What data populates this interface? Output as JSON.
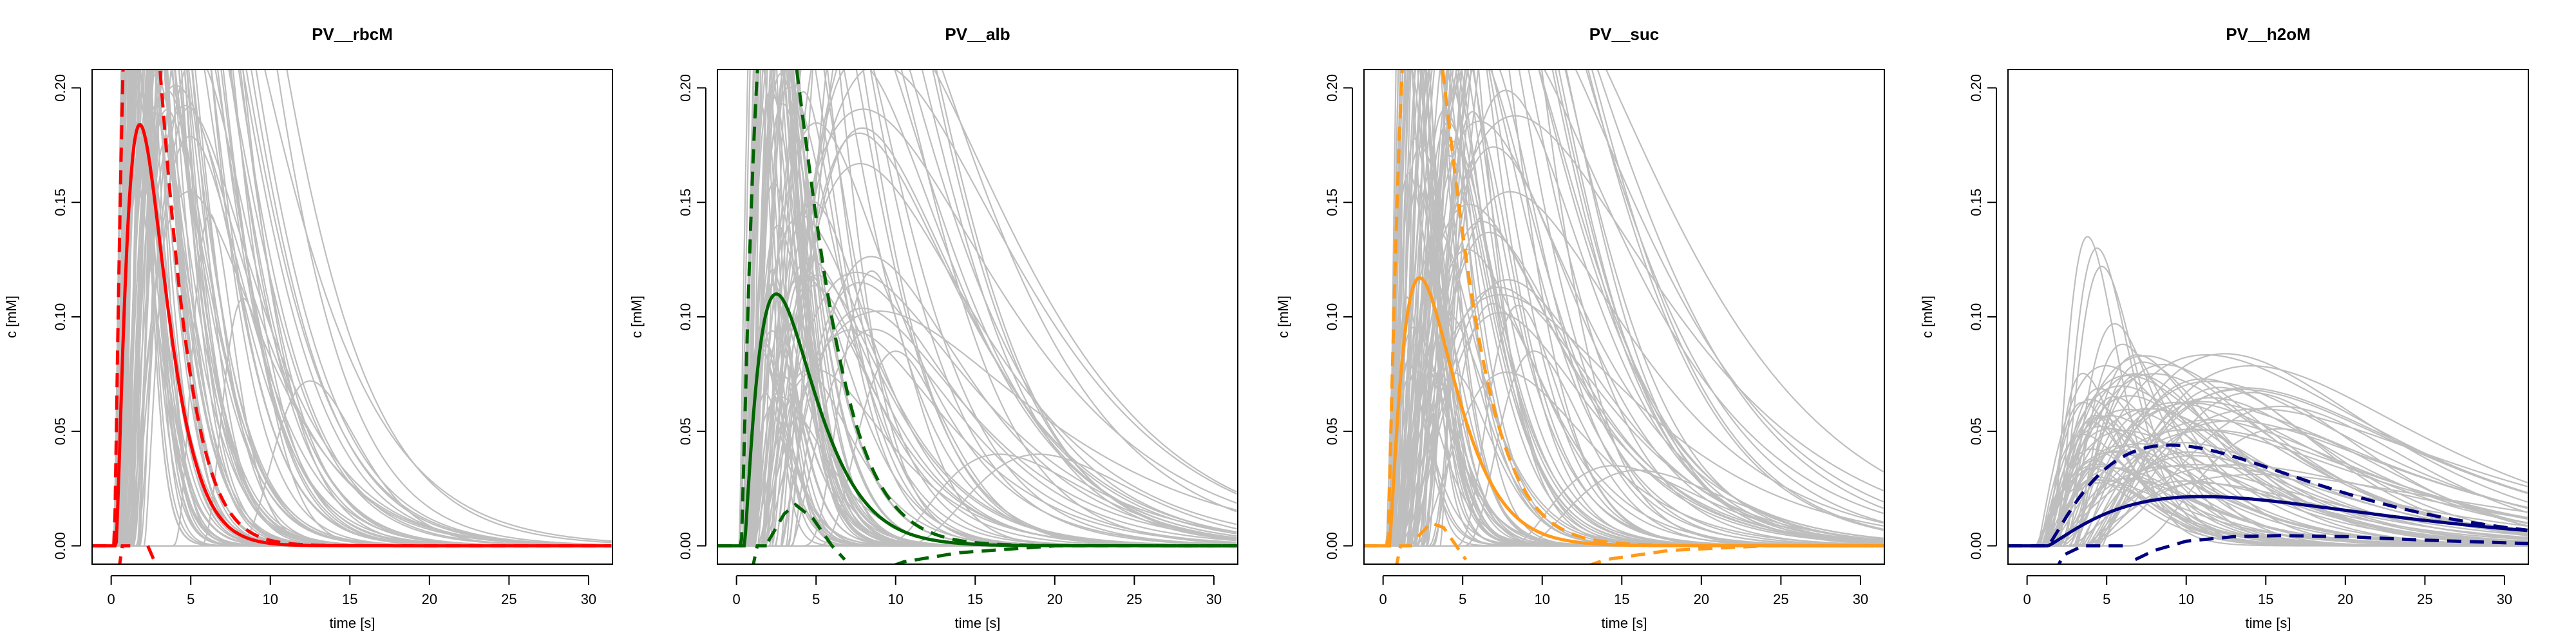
{
  "chart_data": [
    {
      "type": "line",
      "title": "PV__rbcM",
      "xlabel": "time [s]",
      "ylabel": "c [mM]",
      "xlim": [
        -1.2,
        31.5
      ],
      "ylim": [
        -0.008,
        0.208
      ],
      "xticks": [
        "0",
        "5",
        "10",
        "15",
        "20",
        "25",
        "30"
      ],
      "yticks": [
        "0.00",
        "0.05",
        "0.10",
        "0.15",
        "0.20"
      ],
      "color": "#ff0000",
      "mean": {
        "t0": 0.3,
        "peak_t": 1.8,
        "peak_c": 0.184,
        "tau": 2.1
      },
      "upper": {
        "t0": 0.2,
        "peak_t": 1.6,
        "peak_c": 0.31,
        "tau": 3.2
      },
      "lower_segments": [
        [
          [
            0.0,
            -0.05
          ],
          [
            0.45,
            -0.012
          ],
          [
            0.7,
            0.0
          ],
          [
            1.2,
            0.0
          ]
        ],
        [
          [
            2.3,
            0.0
          ],
          [
            2.8,
            -0.008
          ],
          [
            3.3,
            -0.02
          ]
        ]
      ],
      "samples": {
        "count": 80,
        "peak_t_range": [
          1.5,
          5.5
        ],
        "peak_c_range": [
          0.15,
          0.45
        ],
        "extra": [
          {
            "t0": 5.5,
            "peak_t": 8.3,
            "peak_c": 0.108,
            "tau": 1.6
          },
          {
            "t0": 7.6,
            "peak_t": 12.5,
            "peak_c": 0.072,
            "tau": 2.8
          },
          {
            "t0": 3.8,
            "peak_t": 6.2,
            "peak_c": 0.145,
            "tau": 1.4
          }
        ]
      }
    },
    {
      "type": "line",
      "title": "PV__alb",
      "xlabel": "time [s]",
      "ylabel": "c [mM]",
      "xlim": [
        -1.2,
        31.5
      ],
      "ylim": [
        -0.008,
        0.208
      ],
      "xticks": [
        "0",
        "5",
        "10",
        "15",
        "20",
        "25",
        "30"
      ],
      "yticks": [
        "0.00",
        "0.05",
        "0.10",
        "0.15",
        "0.20"
      ],
      "color": "#006400",
      "mean": {
        "t0": 0.5,
        "peak_t": 2.5,
        "peak_c": 0.11,
        "tau": 3.6
      },
      "upper": {
        "t0": 0.3,
        "peak_t": 2.3,
        "peak_c": 0.26,
        "tau": 4.3
      },
      "lower_segments": [
        [
          [
            0.5,
            -0.05
          ],
          [
            1.0,
            -0.01
          ],
          [
            1.3,
            0.0
          ],
          [
            1.9,
            0.0
          ]
        ],
        [
          [
            2.0,
            0.002
          ],
          [
            3.0,
            0.014
          ],
          [
            3.7,
            0.018
          ],
          [
            4.8,
            0.012
          ],
          [
            6.0,
            0.0
          ],
          [
            6.8,
            -0.006
          ]
        ],
        [
          [
            8.5,
            -0.012
          ],
          [
            10.5,
            -0.007
          ],
          [
            14,
            -0.003
          ],
          [
            20,
            0.0
          ],
          [
            27,
            0.0
          ],
          [
            31.5,
            0.0
          ]
        ]
      ],
      "samples": {
        "count": 85,
        "peak_t_range": [
          1.5,
          9.0
        ],
        "peak_c_range": [
          0.06,
          0.35
        ],
        "extra": [
          {
            "t0": 9.0,
            "peak_t": 16.5,
            "peak_c": 0.04,
            "tau": 5.5
          },
          {
            "t0": 10.0,
            "peak_t": 19.0,
            "peak_c": 0.04,
            "tau": 5.5
          },
          {
            "t0": 5.0,
            "peak_t": 10.0,
            "peak_c": 0.085,
            "tau": 3.0
          },
          {
            "t0": 4.0,
            "peak_t": 8.5,
            "peak_c": 0.12,
            "tau": 2.2
          }
        ]
      }
    },
    {
      "type": "line",
      "title": "PV__suc",
      "xlabel": "time [s]",
      "ylabel": "c [mM]",
      "xlim": [
        -1.2,
        31.5
      ],
      "ylim": [
        -0.008,
        0.208
      ],
      "xticks": [
        "0",
        "5",
        "10",
        "15",
        "20",
        "25",
        "30"
      ],
      "yticks": [
        "0.00",
        "0.05",
        "0.10",
        "0.15",
        "0.20"
      ],
      "color": "#ff9a1a",
      "mean": {
        "t0": 0.4,
        "peak_t": 2.3,
        "peak_c": 0.117,
        "tau": 3.0
      },
      "upper": {
        "t0": 0.3,
        "peak_t": 2.2,
        "peak_c": 0.27,
        "tau": 3.7
      },
      "lower_segments": [
        [
          [
            0.4,
            -0.05
          ],
          [
            0.8,
            -0.01
          ],
          [
            1.1,
            0.0
          ],
          [
            1.9,
            0.0
          ]
        ],
        [
          [
            2.2,
            0.004
          ],
          [
            3.0,
            0.01
          ],
          [
            3.8,
            0.008
          ],
          [
            4.6,
            0.0
          ],
          [
            5.2,
            -0.006
          ]
        ],
        [
          [
            11.5,
            -0.012
          ],
          [
            14,
            -0.006
          ],
          [
            18,
            -0.002
          ],
          [
            24,
            0.0
          ],
          [
            31.5,
            0.0
          ]
        ]
      ],
      "samples": {
        "count": 85,
        "peak_t_range": [
          1.5,
          8.5
        ],
        "peak_c_range": [
          0.07,
          0.35
        ],
        "extra": [
          {
            "t0": 8.0,
            "peak_t": 14.5,
            "peak_c": 0.035,
            "tau": 6.0
          },
          {
            "t0": 8.5,
            "peak_t": 16.0,
            "peak_c": 0.033,
            "tau": 6.0
          },
          {
            "t0": 5.0,
            "peak_t": 9.5,
            "peak_c": 0.085,
            "tau": 3.0
          },
          {
            "t0": 4.5,
            "peak_t": 8.5,
            "peak_c": 0.105,
            "tau": 2.5
          }
        ]
      }
    },
    {
      "type": "line",
      "title": "PV__h2oM",
      "xlabel": "time [s]",
      "ylabel": "c [mM]",
      "xlim": [
        -1.2,
        31.5
      ],
      "ylim": [
        -0.008,
        0.208
      ],
      "xticks": [
        "0",
        "5",
        "10",
        "15",
        "20",
        "25",
        "30"
      ],
      "yticks": [
        "0.00",
        "0.05",
        "0.10",
        "0.15",
        "0.20"
      ],
      "color": "#000080",
      "mean": {
        "t0": 1.3,
        "peak_t": 11.0,
        "peak_c": 0.0215,
        "tau": 32
      },
      "upper": {
        "t0": 1.3,
        "peak_t": 9.0,
        "peak_c": 0.044,
        "tau": 25
      },
      "lower_segments": [
        [
          [
            1.7,
            -0.012
          ],
          [
            2.3,
            -0.004
          ],
          [
            3.5,
            0.0
          ],
          [
            4.8,
            0.0
          ],
          [
            6.5,
            0.0
          ]
        ],
        [
          [
            6.8,
            -0.006
          ],
          [
            8.0,
            -0.002
          ],
          [
            10.0,
            0.002
          ],
          [
            13.0,
            0.004
          ],
          [
            16.0,
            0.0045
          ],
          [
            20.0,
            0.004
          ],
          [
            25.0,
            0.0025
          ],
          [
            31.5,
            0.001
          ]
        ]
      ],
      "samples": {
        "count": 70,
        "peak_t_range": [
          3.5,
          16.0
        ],
        "peak_c_range": [
          0.025,
          0.085
        ],
        "tau_range": [
          6,
          22
        ],
        "extra": [
          {
            "t0": 1.3,
            "peak_t": 3.8,
            "peak_c": 0.135,
            "tau": 2.0
          },
          {
            "t0": 1.5,
            "peak_t": 4.4,
            "peak_c": 0.13,
            "tau": 2.2
          },
          {
            "t0": 1.6,
            "peak_t": 4.7,
            "peak_c": 0.122,
            "tau": 2.3
          },
          {
            "t0": 2.0,
            "peak_t": 5.5,
            "peak_c": 0.097,
            "tau": 3.0
          },
          {
            "t0": 2.2,
            "peak_t": 6.0,
            "peak_c": 0.088,
            "tau": 3.5
          },
          {
            "t0": 2.5,
            "peak_t": 7.0,
            "peak_c": 0.075,
            "tau": 4.0
          }
        ]
      }
    }
  ]
}
